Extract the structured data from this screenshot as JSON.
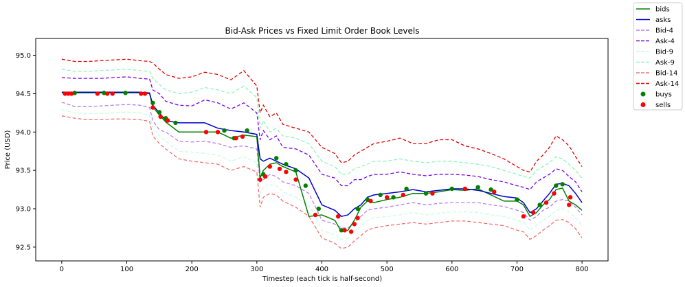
{
  "chart_data": {
    "type": "line",
    "title": "Bid-Ask Prices vs Fixed Limit Order Book Levels",
    "xlabel": "Timestep (each tick is half-second)",
    "ylabel": "Price (USD)",
    "xlim": [
      -40,
      840
    ],
    "ylim": [
      92.32,
      95.22
    ],
    "xticks": [
      0,
      100,
      200,
      300,
      400,
      500,
      600,
      700,
      800
    ],
    "yticks": [
      92.5,
      93.0,
      93.5,
      94.0,
      94.5,
      95.0
    ],
    "xtick_labels": [
      "0",
      "100",
      "200",
      "300",
      "400",
      "500",
      "600",
      "700",
      "800"
    ],
    "ytick_labels": [
      "92.5",
      "93.0",
      "93.5",
      "94.0",
      "94.5",
      "95.0"
    ],
    "grid": false,
    "legend_position": "outside-top-right",
    "x": [
      0,
      20,
      40,
      60,
      80,
      100,
      120,
      135,
      140,
      150,
      160,
      180,
      200,
      220,
      240,
      260,
      280,
      300,
      305,
      310,
      320,
      330,
      340,
      360,
      380,
      400,
      420,
      430,
      440,
      450,
      460,
      470,
      480,
      500,
      520,
      540,
      560,
      580,
      600,
      620,
      640,
      660,
      680,
      700,
      710,
      720,
      730,
      740,
      750,
      760,
      770,
      780,
      790,
      800
    ],
    "series": [
      {
        "name": "bids",
        "color": "#008000",
        "style": "solid",
        "values": [
          94.51,
          94.51,
          94.51,
          94.51,
          94.51,
          94.51,
          94.51,
          94.5,
          94.33,
          94.22,
          94.13,
          94.0,
          94.0,
          94.0,
          94.0,
          93.92,
          93.96,
          93.94,
          93.4,
          93.5,
          93.58,
          93.6,
          93.55,
          93.48,
          92.9,
          92.92,
          92.85,
          92.7,
          92.72,
          92.85,
          93.02,
          93.1,
          93.08,
          93.12,
          93.15,
          93.2,
          93.2,
          93.22,
          93.25,
          93.24,
          93.26,
          93.18,
          93.1,
          93.1,
          93.05,
          92.9,
          92.95,
          93.05,
          93.12,
          93.25,
          93.27,
          93.1,
          93.05,
          92.98
        ]
      },
      {
        "name": "asks",
        "color": "#0000cd",
        "style": "solid",
        "values": [
          94.52,
          94.52,
          94.52,
          94.52,
          94.52,
          94.52,
          94.52,
          94.51,
          94.35,
          94.25,
          94.15,
          94.12,
          94.12,
          94.12,
          94.05,
          94.02,
          94.0,
          93.97,
          93.65,
          93.62,
          93.66,
          93.62,
          93.58,
          93.52,
          93.4,
          93.05,
          92.98,
          92.9,
          92.92,
          93.0,
          93.05,
          93.15,
          93.18,
          93.2,
          93.22,
          93.25,
          93.22,
          93.24,
          93.26,
          93.26,
          93.24,
          93.2,
          93.16,
          93.14,
          93.08,
          92.95,
          93.0,
          93.1,
          93.2,
          93.32,
          93.33,
          93.3,
          93.2,
          93.08
        ]
      },
      {
        "name": "Bid-4",
        "color": "#b77cf0",
        "style": "dashed",
        "values": [
          94.39,
          94.33,
          94.33,
          94.34,
          94.35,
          94.36,
          94.35,
          94.32,
          94.15,
          94.03,
          94.0,
          93.88,
          93.87,
          93.88,
          93.85,
          93.8,
          93.82,
          93.78,
          93.35,
          93.38,
          93.45,
          93.42,
          93.35,
          93.3,
          93.2,
          92.85,
          92.8,
          92.75,
          92.75,
          92.82,
          92.9,
          92.98,
          93.0,
          93.02,
          93.05,
          93.08,
          93.05,
          93.07,
          93.08,
          93.08,
          93.08,
          93.05,
          93.03,
          92.98,
          92.95,
          92.85,
          92.9,
          92.98,
          93.02,
          93.1,
          93.12,
          93.1,
          93.02,
          92.92
        ]
      },
      {
        "name": "Ask-4",
        "color": "#7a00e6",
        "style": "dashed",
        "values": [
          94.71,
          94.7,
          94.7,
          94.7,
          94.71,
          94.72,
          94.7,
          94.69,
          94.55,
          94.5,
          94.4,
          94.35,
          94.34,
          94.42,
          94.38,
          94.3,
          94.38,
          94.25,
          93.9,
          94.02,
          93.9,
          93.95,
          93.8,
          93.78,
          93.7,
          93.45,
          93.4,
          93.3,
          93.3,
          93.38,
          93.38,
          93.42,
          93.45,
          93.45,
          93.48,
          93.45,
          93.43,
          93.45,
          93.45,
          93.44,
          93.42,
          93.38,
          93.35,
          93.3,
          93.28,
          93.25,
          93.35,
          93.4,
          93.45,
          93.52,
          93.5,
          93.42,
          93.35,
          93.22
        ]
      },
      {
        "name": "Bid-9",
        "color": "#c4ffdf",
        "style": "dashed",
        "values": [
          94.29,
          94.25,
          94.24,
          94.24,
          94.25,
          94.26,
          94.25,
          94.22,
          94.05,
          93.95,
          93.88,
          93.75,
          93.74,
          93.72,
          93.7,
          93.62,
          93.68,
          93.6,
          93.2,
          93.28,
          93.32,
          93.3,
          93.22,
          93.15,
          93.05,
          92.72,
          92.66,
          92.6,
          92.62,
          92.7,
          92.78,
          92.85,
          92.88,
          92.9,
          92.92,
          92.95,
          92.92,
          92.94,
          92.96,
          92.96,
          92.95,
          92.92,
          92.9,
          92.85,
          92.82,
          92.72,
          92.78,
          92.85,
          92.9,
          92.98,
          93.0,
          92.96,
          92.88,
          92.78
        ]
      },
      {
        "name": "Ask-9",
        "color": "#8cf5b9",
        "style": "dashed",
        "values": [
          94.82,
          94.79,
          94.79,
          94.8,
          94.81,
          94.82,
          94.8,
          94.79,
          94.7,
          94.62,
          94.55,
          94.5,
          94.52,
          94.58,
          94.55,
          94.5,
          94.6,
          94.45,
          94.05,
          94.15,
          94.0,
          94.05,
          93.95,
          93.92,
          93.85,
          93.62,
          93.55,
          93.45,
          93.45,
          93.52,
          93.55,
          93.58,
          93.62,
          93.62,
          93.65,
          93.62,
          93.6,
          93.62,
          93.62,
          93.6,
          93.58,
          93.55,
          93.5,
          93.45,
          93.42,
          93.4,
          93.5,
          93.55,
          93.6,
          93.68,
          93.65,
          93.58,
          93.5,
          93.4
        ]
      },
      {
        "name": "Bid-14",
        "color": "#f07070",
        "style": "dashed",
        "values": [
          94.21,
          94.18,
          94.16,
          94.16,
          94.17,
          94.17,
          94.16,
          94.14,
          93.95,
          93.85,
          93.78,
          93.65,
          93.62,
          93.6,
          93.58,
          93.5,
          93.55,
          93.48,
          93.02,
          93.15,
          93.2,
          93.18,
          93.1,
          93.02,
          92.9,
          92.62,
          92.55,
          92.48,
          92.5,
          92.58,
          92.65,
          92.72,
          92.75,
          92.78,
          92.8,
          92.82,
          92.8,
          92.82,
          92.84,
          92.84,
          92.82,
          92.8,
          92.78,
          92.72,
          92.7,
          92.6,
          92.65,
          92.72,
          92.78,
          92.85,
          92.86,
          92.82,
          92.74,
          92.62
        ]
      },
      {
        "name": "Ask-14",
        "color": "#e00000",
        "style": "dashed",
        "values": [
          94.95,
          94.92,
          94.92,
          94.93,
          94.94,
          94.95,
          94.93,
          94.92,
          94.9,
          94.82,
          94.75,
          94.7,
          94.72,
          94.78,
          94.75,
          94.68,
          94.8,
          94.6,
          94.25,
          94.35,
          94.2,
          94.25,
          94.1,
          94.05,
          94.0,
          93.8,
          93.72,
          93.6,
          93.62,
          93.7,
          93.75,
          93.8,
          93.85,
          93.88,
          93.92,
          93.85,
          93.85,
          93.9,
          93.9,
          93.82,
          93.78,
          93.72,
          93.65,
          93.55,
          93.5,
          93.48,
          93.62,
          93.7,
          93.8,
          93.95,
          93.9,
          93.82,
          93.68,
          93.55
        ]
      }
    ],
    "scatter_series": [
      {
        "name": "buys",
        "color": "#008000",
        "points": [
          [
            20,
            94.51
          ],
          [
            65,
            94.51
          ],
          [
            98,
            94.51
          ],
          [
            140,
            94.38
          ],
          [
            150,
            94.26
          ],
          [
            160,
            94.18
          ],
          [
            175,
            94.12
          ],
          [
            250,
            94.02
          ],
          [
            265,
            93.92
          ],
          [
            285,
            94.02
          ],
          [
            310,
            93.45
          ],
          [
            330,
            93.66
          ],
          [
            345,
            93.58
          ],
          [
            360,
            93.5
          ],
          [
            375,
            93.3
          ],
          [
            395,
            93.0
          ],
          [
            430,
            92.72
          ],
          [
            455,
            93.0
          ],
          [
            470,
            93.12
          ],
          [
            490,
            93.18
          ],
          [
            510,
            93.15
          ],
          [
            530,
            93.26
          ],
          [
            560,
            93.2
          ],
          [
            600,
            93.26
          ],
          [
            640,
            93.28
          ],
          [
            660,
            93.25
          ],
          [
            700,
            93.12
          ],
          [
            735,
            93.05
          ],
          [
            760,
            93.3
          ],
          [
            770,
            93.32
          ]
        ]
      },
      {
        "name": "sells",
        "color": "#ff0000",
        "points": [
          [
            5,
            94.5
          ],
          [
            10,
            94.5
          ],
          [
            15,
            94.5
          ],
          [
            55,
            94.5
          ],
          [
            70,
            94.5
          ],
          [
            78,
            94.5
          ],
          [
            122,
            94.5
          ],
          [
            128,
            94.5
          ],
          [
            140,
            94.32
          ],
          [
            152,
            94.2
          ],
          [
            163,
            94.15
          ],
          [
            222,
            94.0
          ],
          [
            240,
            94.0
          ],
          [
            268,
            93.92
          ],
          [
            278,
            93.94
          ],
          [
            305,
            93.38
          ],
          [
            313,
            93.42
          ],
          [
            320,
            93.55
          ],
          [
            335,
            93.52
          ],
          [
            345,
            93.48
          ],
          [
            360,
            93.38
          ],
          [
            390,
            92.92
          ],
          [
            425,
            92.9
          ],
          [
            435,
            92.72
          ],
          [
            445,
            92.7
          ],
          [
            450,
            92.8
          ],
          [
            455,
            92.88
          ],
          [
            475,
            93.1
          ],
          [
            500,
            93.15
          ],
          [
            525,
            93.18
          ],
          [
            570,
            93.2
          ],
          [
            620,
            93.26
          ],
          [
            665,
            93.22
          ],
          [
            710,
            92.9
          ],
          [
            725,
            92.95
          ],
          [
            745,
            93.08
          ],
          [
            757,
            93.2
          ],
          [
            780,
            93.05
          ],
          [
            782,
            93.15
          ]
        ]
      }
    ]
  }
}
